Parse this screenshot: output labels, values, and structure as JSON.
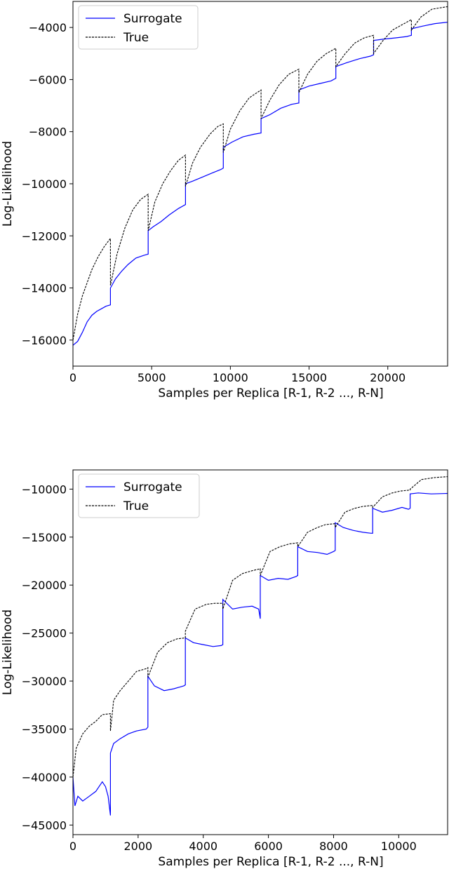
{
  "chart_data": [
    {
      "type": "line",
      "xlabel": "Samples per Replica [R-1, R-2 ..., R-N]",
      "ylabel": "Log-Likelihood",
      "xlim": [
        0,
        23800
      ],
      "ylim": [
        -17000,
        -3000
      ],
      "xticks": [
        0,
        5000,
        10000,
        15000,
        20000
      ],
      "yticks": [
        -16000,
        -14000,
        -12000,
        -10000,
        -8000,
        -6000,
        -4000
      ],
      "legend": "upper left",
      "grid": false,
      "series": [
        {
          "name": "Surrogate",
          "color": "#0000ff",
          "style": "solid",
          "x": [
            0,
            300,
            600,
            900,
            1200,
            1500,
            1800,
            2100,
            2380,
            2380,
            2700,
            3100,
            3500,
            4000,
            4500,
            4780,
            4780,
            5100,
            5600,
            6100,
            6700,
            7150,
            7150,
            7600,
            8200,
            8800,
            9400,
            9550,
            9550,
            10100,
            10800,
            11500,
            11950,
            11950,
            12500,
            13200,
            13900,
            14350,
            14350,
            15000,
            15700,
            16400,
            16700,
            16700,
            17400,
            18200,
            18900,
            19100,
            19100,
            19700,
            20500,
            21200,
            21500,
            21500,
            22200,
            23000,
            23800
          ],
          "y": [
            -16200,
            -16050,
            -15700,
            -15300,
            -15050,
            -14900,
            -14800,
            -14700,
            -14650,
            -14000,
            -13650,
            -13350,
            -13100,
            -12850,
            -12750,
            -12700,
            -11800,
            -11650,
            -11450,
            -11200,
            -10950,
            -10800,
            -10000,
            -9900,
            -9750,
            -9600,
            -9450,
            -9400,
            -8600,
            -8400,
            -8200,
            -8100,
            -8050,
            -7500,
            -7350,
            -7100,
            -6950,
            -6900,
            -6400,
            -6250,
            -6150,
            -6050,
            -5950,
            -5500,
            -5350,
            -5200,
            -5100,
            -5050,
            -4500,
            -4450,
            -4400,
            -4350,
            -4300,
            -4050,
            -3950,
            -3850,
            -3800
          ]
        },
        {
          "name": "True",
          "color": "#000000",
          "style": "dashed",
          "x": [
            0,
            300,
            600,
            900,
            1200,
            1600,
            2000,
            2380,
            2380,
            2800,
            3300,
            3800,
            4300,
            4780,
            4780,
            5200,
            5700,
            6200,
            6700,
            7150,
            7150,
            7600,
            8100,
            8700,
            9200,
            9550,
            9550,
            10000,
            10600,
            11200,
            11950,
            11950,
            12500,
            13100,
            13700,
            14350,
            14350,
            14900,
            15500,
            16100,
            16700,
            16700,
            17300,
            17900,
            18500,
            19100,
            19100,
            19700,
            20300,
            20900,
            21500,
            21500,
            22100,
            22800,
            23800
          ],
          "y": [
            -16000,
            -15000,
            -14300,
            -13800,
            -13300,
            -12800,
            -12400,
            -12100,
            -13900,
            -12700,
            -11700,
            -11000,
            -10600,
            -10400,
            -11800,
            -10700,
            -10000,
            -9500,
            -9100,
            -8900,
            -10100,
            -9200,
            -8600,
            -8100,
            -7800,
            -7700,
            -8800,
            -7900,
            -7200,
            -6700,
            -6400,
            -7500,
            -6800,
            -6200,
            -5800,
            -5600,
            -6500,
            -5800,
            -5300,
            -5000,
            -4800,
            -5500,
            -5000,
            -4600,
            -4400,
            -4300,
            -5000,
            -4500,
            -4100,
            -3900,
            -3700,
            -4100,
            -3600,
            -3300,
            -3200
          ]
        }
      ]
    },
    {
      "type": "line",
      "xlabel": "Samples per Replica [R-1, R-2 ..., R-N]",
      "ylabel": "Log-Likelihood",
      "xlim": [
        0,
        11500
      ],
      "ylim": [
        -46000,
        -8000
      ],
      "xticks": [
        0,
        2000,
        4000,
        6000,
        8000,
        10000
      ],
      "yticks": [
        -45000,
        -40000,
        -35000,
        -30000,
        -25000,
        -20000,
        -15000,
        -10000
      ],
      "legend": "upper left",
      "grid": false,
      "series": [
        {
          "name": "Surrogate",
          "color": "#0000ff",
          "style": "solid",
          "x": [
            0,
            60,
            150,
            300,
            500,
            700,
            900,
            1000,
            1080,
            1150,
            1150,
            1250,
            1450,
            1700,
            1950,
            2250,
            2300,
            2300,
            2500,
            2800,
            3100,
            3400,
            3450,
            3450,
            3700,
            4000,
            4300,
            4550,
            4600,
            4600,
            4900,
            5200,
            5500,
            5700,
            5750,
            5750,
            6000,
            6300,
            6600,
            6850,
            6900,
            6900,
            7200,
            7500,
            7800,
            8000,
            8050,
            8050,
            8300,
            8600,
            8900,
            9150,
            9200,
            9200,
            9500,
            9800,
            10100,
            10300,
            10350,
            10350,
            10600,
            11000,
            11500
          ],
          "y": [
            -40000,
            -43000,
            -42000,
            -42500,
            -42000,
            -41500,
            -40500,
            -41000,
            -42000,
            -44000,
            -37500,
            -36500,
            -36000,
            -35500,
            -35200,
            -35000,
            -34800,
            -29500,
            -30500,
            -31000,
            -30800,
            -30500,
            -30400,
            -25500,
            -26000,
            -26200,
            -26400,
            -26300,
            -26200,
            -21500,
            -22500,
            -22300,
            -22200,
            -22500,
            -23500,
            -19000,
            -19500,
            -19300,
            -19400,
            -19100,
            -19000,
            -16000,
            -16500,
            -16600,
            -16800,
            -16500,
            -16400,
            -13500,
            -14000,
            -14300,
            -14500,
            -14600,
            -14600,
            -12000,
            -12400,
            -12200,
            -11900,
            -12100,
            -12000,
            -10500,
            -10400,
            -10500,
            -10450
          ]
        },
        {
          "name": "True",
          "color": "#000000",
          "style": "dashed",
          "x": [
            0,
            100,
            300,
            500,
            700,
            900,
            1150,
            1150,
            1250,
            1450,
            1700,
            1950,
            2250,
            2300,
            2300,
            2600,
            2900,
            3200,
            3450,
            3450,
            3750,
            4100,
            4350,
            4600,
            4600,
            4900,
            5200,
            5500,
            5750,
            5750,
            6050,
            6350,
            6650,
            6900,
            6900,
            7200,
            7500,
            7750,
            8050,
            8050,
            8350,
            8650,
            8900,
            9200,
            9200,
            9500,
            9800,
            10050,
            10350,
            10350,
            10700,
            11100,
            11500
          ],
          "y": [
            -40000,
            -37000,
            -35500,
            -34700,
            -34200,
            -33500,
            -33400,
            -35200,
            -32000,
            -31000,
            -30000,
            -29000,
            -28700,
            -28600,
            -29600,
            -27000,
            -26000,
            -25600,
            -25500,
            -24800,
            -22500,
            -22000,
            -21900,
            -21900,
            -22500,
            -19500,
            -18800,
            -18500,
            -18300,
            -19000,
            -16500,
            -16000,
            -15700,
            -15600,
            -16000,
            -14500,
            -14000,
            -13700,
            -13600,
            -14000,
            -12400,
            -12000,
            -11800,
            -11700,
            -11900,
            -10800,
            -10400,
            -10200,
            -10100,
            -10000,
            -9000,
            -8800,
            -8700
          ]
        }
      ]
    }
  ]
}
